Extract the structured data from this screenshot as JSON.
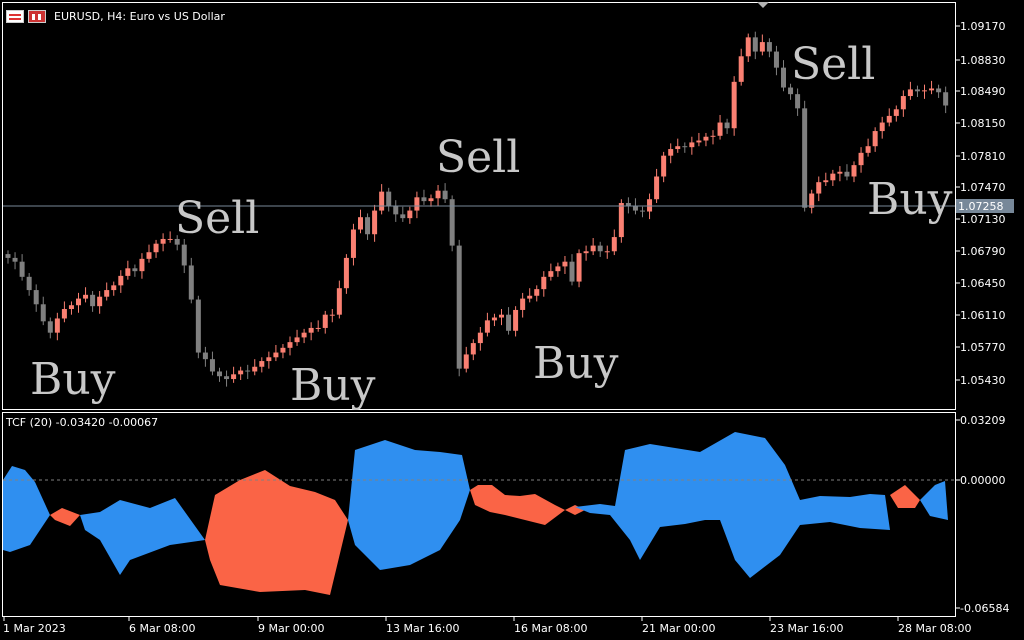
{
  "window": {
    "symbol_title": "EURUSD, H4:  Euro vs US Dollar"
  },
  "indicator": {
    "title": "TCF (20) -0.03420 -0.00067",
    "axis_labels": [
      "0.03209",
      "0.00000",
      "-0.06584"
    ],
    "colors": {
      "positive": "#2f8ff0",
      "negative": "#fa6446"
    }
  },
  "price_axis": {
    "labels": [
      "1.09170",
      "1.08830",
      "1.08490",
      "1.08150",
      "1.07810",
      "1.07470",
      "1.07130",
      "1.06790",
      "1.06450",
      "1.06110",
      "1.05770",
      "1.05430"
    ],
    "current_price": "1.07258"
  },
  "time_axis": {
    "labels": [
      "1 Mar 2023",
      "6 Mar 08:00",
      "9 Mar 00:00",
      "13 Mar 16:00",
      "16 Mar 08:00",
      "21 Mar 00:00",
      "23 Mar 16:00",
      "28 Mar 08:00"
    ]
  },
  "signals": [
    {
      "text": "Buy"
    },
    {
      "text": "Sell"
    },
    {
      "text": "Buy"
    },
    {
      "text": "Sell"
    },
    {
      "text": "Buy"
    },
    {
      "text": "Sell"
    },
    {
      "text": "Buy"
    }
  ],
  "colors": {
    "bull": "#fa8072",
    "bear": "#808080",
    "signal_text": "#c8c8c8",
    "grid": "#ffffff",
    "price_line": "#778899"
  },
  "chart_data": {
    "type": "candlestick",
    "close_prices": [
      1.0672,
      1.0668,
      1.0652,
      1.0638,
      1.0623,
      1.0605,
      1.0593,
      1.0608,
      1.0618,
      1.0622,
      1.0629,
      1.0633,
      1.0621,
      1.0631,
      1.0638,
      1.0643,
      1.0653,
      1.0661,
      1.0658,
      1.0671,
      1.0678,
      1.0687,
      1.0692,
      1.0692,
      1.0686,
      1.0664,
      1.0628,
      1.0572,
      1.0565,
      1.0552,
      1.0547,
      1.0544,
      1.0549,
      1.0553,
      1.0552,
      1.0557,
      1.0563,
      1.0567,
      1.0572,
      1.0577,
      1.0583,
      1.0588,
      1.0593,
      1.0598,
      1.0598,
      1.0612,
      1.0612,
      1.064,
      1.0672,
      1.0702,
      1.0715,
      1.0697,
      1.0722,
      1.0742,
      1.0727,
      1.0718,
      1.0714,
      1.0722,
      1.0736,
      1.0732,
      1.0735,
      1.0743,
      1.0734,
      1.0685,
      1.0555,
      1.057,
      1.0582,
      1.0593,
      1.0606,
      1.0609,
      1.0612,
      1.0595,
      1.0617,
      1.0629,
      1.0632,
      1.0639,
      1.0652,
      1.0658,
      1.0663,
      1.0668,
      1.0647,
      1.0677,
      1.0679,
      1.0685,
      1.0679,
      1.0679,
      1.0694,
      1.073,
      1.0727,
      1.0722,
      1.0721,
      1.0734,
      1.0758,
      1.078,
      1.0787,
      1.079,
      1.0789,
      1.0794,
      1.0796,
      1.08,
      1.0801,
      1.0815,
      1.0809,
      1.0858,
      1.0885,
      1.0905,
      1.089,
      1.09,
      1.089,
      1.0873,
      1.0852,
      1.0845,
      1.083,
      1.0725,
      1.074,
      1.0752,
      1.0754,
      1.0761,
      1.0763,
      1.0758,
      1.077,
      1.0783,
      1.079,
      1.0806,
      1.0815,
      1.0822,
      1.0829,
      1.0843,
      1.085,
      1.0848,
      1.0849,
      1.0851,
      1.0847,
      1.0833
    ]
  }
}
